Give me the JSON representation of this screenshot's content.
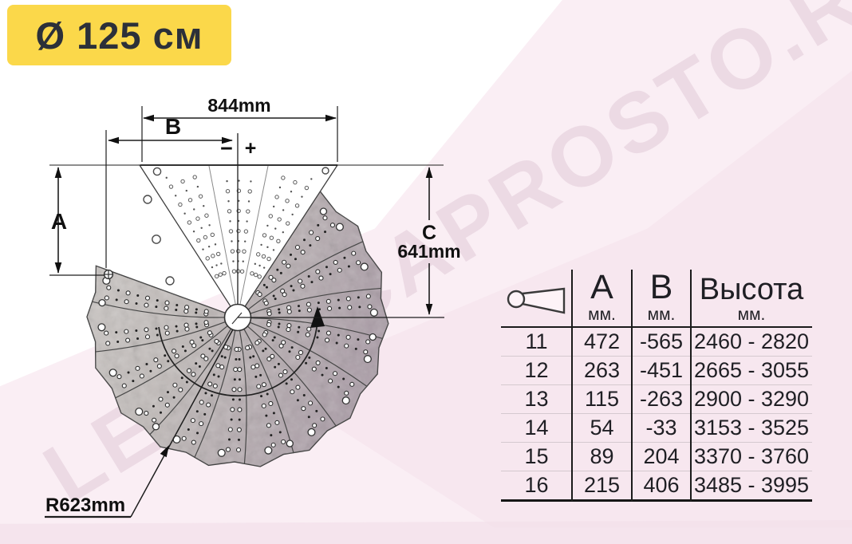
{
  "badge": {
    "label": "Ø 125 см"
  },
  "watermark": {
    "text": "LESTNICAPROSTO.RU"
  },
  "diagram": {
    "width_label": "844mm",
    "b_label": "B",
    "minus": "−",
    "plus": "+",
    "a_label": "A",
    "c_label": "C",
    "c_value": "641mm",
    "radius_label": "R623mm"
  },
  "table": {
    "columns": [
      {
        "label": "A",
        "unit": "мм."
      },
      {
        "label": "B",
        "unit": "мм."
      },
      {
        "label": "Высота",
        "unit": "мм."
      }
    ],
    "rows": [
      {
        "steps": "11",
        "a": "472",
        "b": "-565",
        "height": "2460 - 2820"
      },
      {
        "steps": "12",
        "a": "263",
        "b": "-451",
        "height": "2665 - 3055"
      },
      {
        "steps": "13",
        "a": "115",
        "b": "-263",
        "height": "2900 - 3290"
      },
      {
        "steps": "14",
        "a": "54",
        "b": "-33",
        "height": "3153 - 3525"
      },
      {
        "steps": "15",
        "a": "89",
        "b": "204",
        "height": "3370 - 3760"
      },
      {
        "steps": "16",
        "a": "215",
        "b": "406",
        "height": "3485 - 3995"
      }
    ]
  },
  "colors": {
    "accent_yellow": "#fbd84a",
    "badge_text": "#2c3039",
    "disc_gray": "#c1bbb9"
  }
}
